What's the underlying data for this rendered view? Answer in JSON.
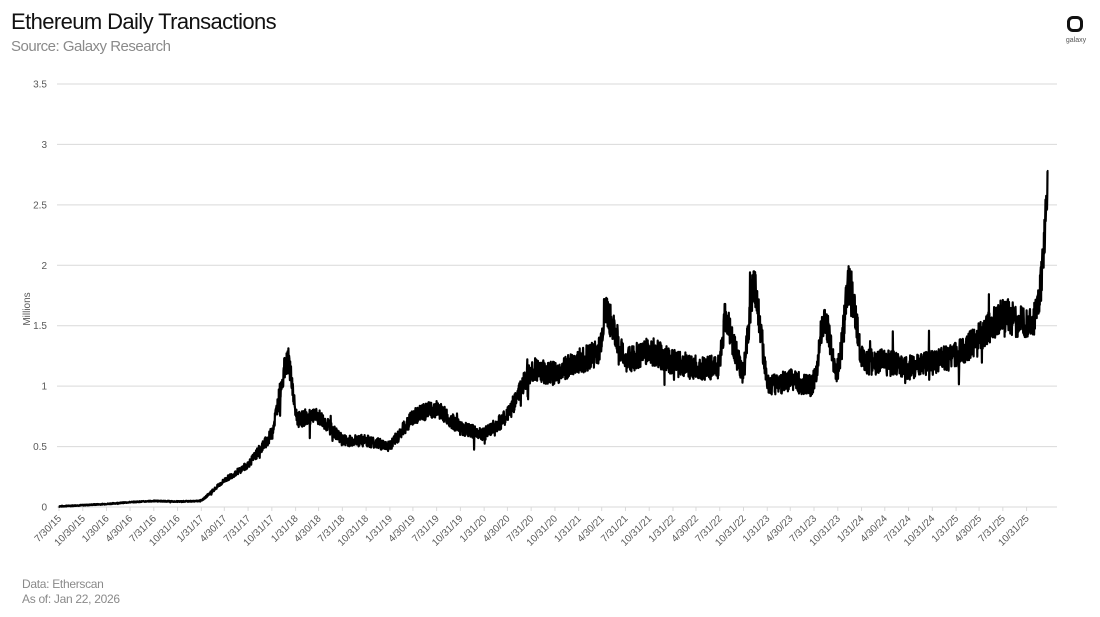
{
  "header": {
    "title": "Ethereum Daily Transactions",
    "subtitle": "Source: Galaxy Research"
  },
  "logo": {
    "icon": "galaxy-logo-icon",
    "text": "galaxy"
  },
  "footer": {
    "data_source": "Data: Etherscan",
    "as_of": "As of: Jan 22, 2026"
  },
  "colors": {
    "line": "#000000",
    "grid": "#d9d9d9",
    "axis_text": "#595959",
    "title": "#111111",
    "subtitle": "#8a8a8a"
  },
  "chart_data": {
    "type": "line",
    "title": "Ethereum Daily Transactions",
    "subtitle": "Source: Galaxy Research",
    "xlabel": "",
    "ylabel": "Millions",
    "ylim": [
      0,
      3.5
    ],
    "yticks": [
      "0",
      "0.5",
      "1",
      "1.5",
      "2",
      "2.5",
      "3",
      "3.5"
    ],
    "grid": true,
    "legend": null,
    "x_tick_labels": [
      "7/30/15",
      "10/30/15",
      "1/30/16",
      "4/30/16",
      "7/31/16",
      "10/31/16",
      "1/31/17",
      "4/30/17",
      "7/31/17",
      "10/31/17",
      "1/31/18",
      "4/30/18",
      "7/31/18",
      "10/31/18",
      "1/31/19",
      "4/30/19",
      "7/31/19",
      "10/31/19",
      "1/31/20",
      "4/30/20",
      "7/31/20",
      "10/31/20",
      "1/31/21",
      "4/30/21",
      "7/31/21",
      "10/31/21",
      "1/31/22",
      "4/30/22",
      "7/31/22",
      "10/31/22",
      "1/31/23",
      "4/30/23",
      "7/31/23",
      "10/31/23",
      "1/31/24",
      "4/30/24",
      "7/31/24",
      "10/31/24",
      "1/31/25",
      "4/30/25",
      "7/31/25",
      "10/31/25"
    ],
    "series": [
      {
        "name": "Daily Transactions (Millions)",
        "x": [
          "7/30/15",
          "10/30/15",
          "1/30/16",
          "4/30/16",
          "7/31/16",
          "10/31/16",
          "1/31/17",
          "4/30/17",
          "7/31/17",
          "10/31/17",
          "12/15/17",
          "1/4/18",
          "1/31/18",
          "4/30/18",
          "7/31/18",
          "10/31/18",
          "1/31/19",
          "4/30/19",
          "7/31/19",
          "10/31/19",
          "1/31/20",
          "4/30/20",
          "7/31/20",
          "10/31/20",
          "1/31/21",
          "4/30/21",
          "5/10/21",
          "7/31/21",
          "10/31/21",
          "1/31/22",
          "4/30/22",
          "7/31/22",
          "8/20/22",
          "10/31/22",
          "12/10/22",
          "1/31/23",
          "4/30/23",
          "7/31/23",
          "9/10/23",
          "10/31/23",
          "12/15/23",
          "1/31/24",
          "4/30/24",
          "7/31/24",
          "10/31/24",
          "1/31/25",
          "4/30/25",
          "7/31/25",
          "10/31/25",
          "12/15/25",
          "1/10/26",
          "1/22/26"
        ],
        "values": [
          0.005,
          0.015,
          0.025,
          0.04,
          0.05,
          0.045,
          0.05,
          0.22,
          0.35,
          0.6,
          1.1,
          1.3,
          0.72,
          0.75,
          0.55,
          0.55,
          0.5,
          0.75,
          0.82,
          0.65,
          0.6,
          0.75,
          1.15,
          1.1,
          1.2,
          1.3,
          1.68,
          1.2,
          1.3,
          1.2,
          1.15,
          1.15,
          1.6,
          1.05,
          1.95,
          1.0,
          1.05,
          1.0,
          1.6,
          1.05,
          1.95,
          1.2,
          1.2,
          1.15,
          1.2,
          1.25,
          1.4,
          1.6,
          1.5,
          1.6,
          2.2,
          2.9
        ]
      }
    ]
  }
}
